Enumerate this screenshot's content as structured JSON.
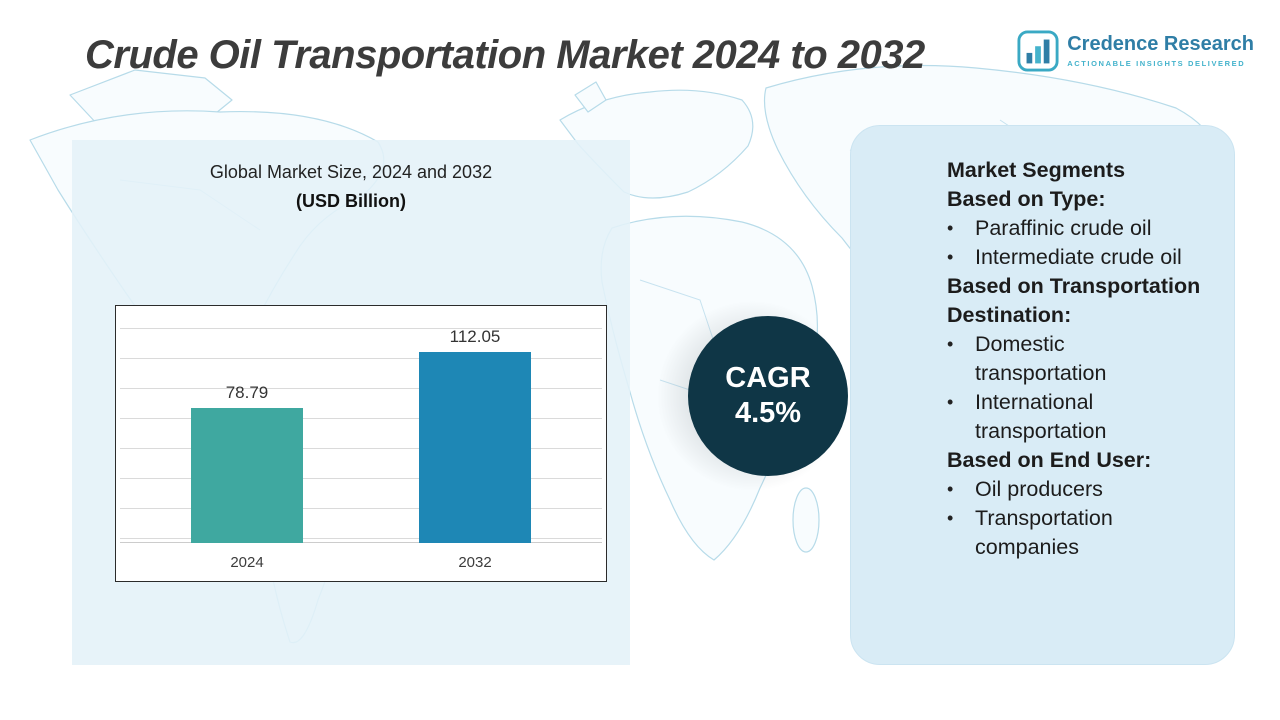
{
  "title": "Crude Oil Transportation Market 2024 to 2032",
  "logo": {
    "name": "Credence Research",
    "tagline": "Actionable Insights Delivered",
    "icon": "bar-chart-icon"
  },
  "market_size_panel": {
    "title": "Global Market Size, 2024 and 2032",
    "subtitle": "(USD Billion)"
  },
  "chart_data": {
    "type": "bar",
    "categories": [
      "2024",
      "2032"
    ],
    "values": [
      78.79,
      112.05
    ],
    "title": "Global Market Size, 2024 and 2032 (USD Billion)",
    "xlabel": "",
    "ylabel": "",
    "ylim": [
      0,
      120
    ],
    "grid": true,
    "legend": false,
    "bar_colors": [
      "#3fa8a0",
      "#1e87b5"
    ]
  },
  "cagr": {
    "label": "CAGR",
    "value": "4.5%",
    "badge_color": "#0f3646"
  },
  "segments": {
    "heading": "Market Segments",
    "bullet": "•",
    "groups": [
      {
        "title": "Based on Type:",
        "items": [
          "Paraffinic crude oil",
          "Intermediate crude oil"
        ]
      },
      {
        "title": "Based on Transportation Destination:",
        "items": [
          "Domestic transportation",
          "International transportation"
        ]
      },
      {
        "title": "Based on End User:",
        "items": [
          "Oil producers",
          "Transportation companies"
        ]
      }
    ]
  },
  "colors": {
    "panel_bg": "#e4f1f8",
    "segments_panel_bg": "#d9ecf6",
    "map_line": "#b7dbe9",
    "title_text": "#3c3c3c",
    "logo_blue": "#2f7ea6",
    "logo_teal": "#45b3cc"
  }
}
